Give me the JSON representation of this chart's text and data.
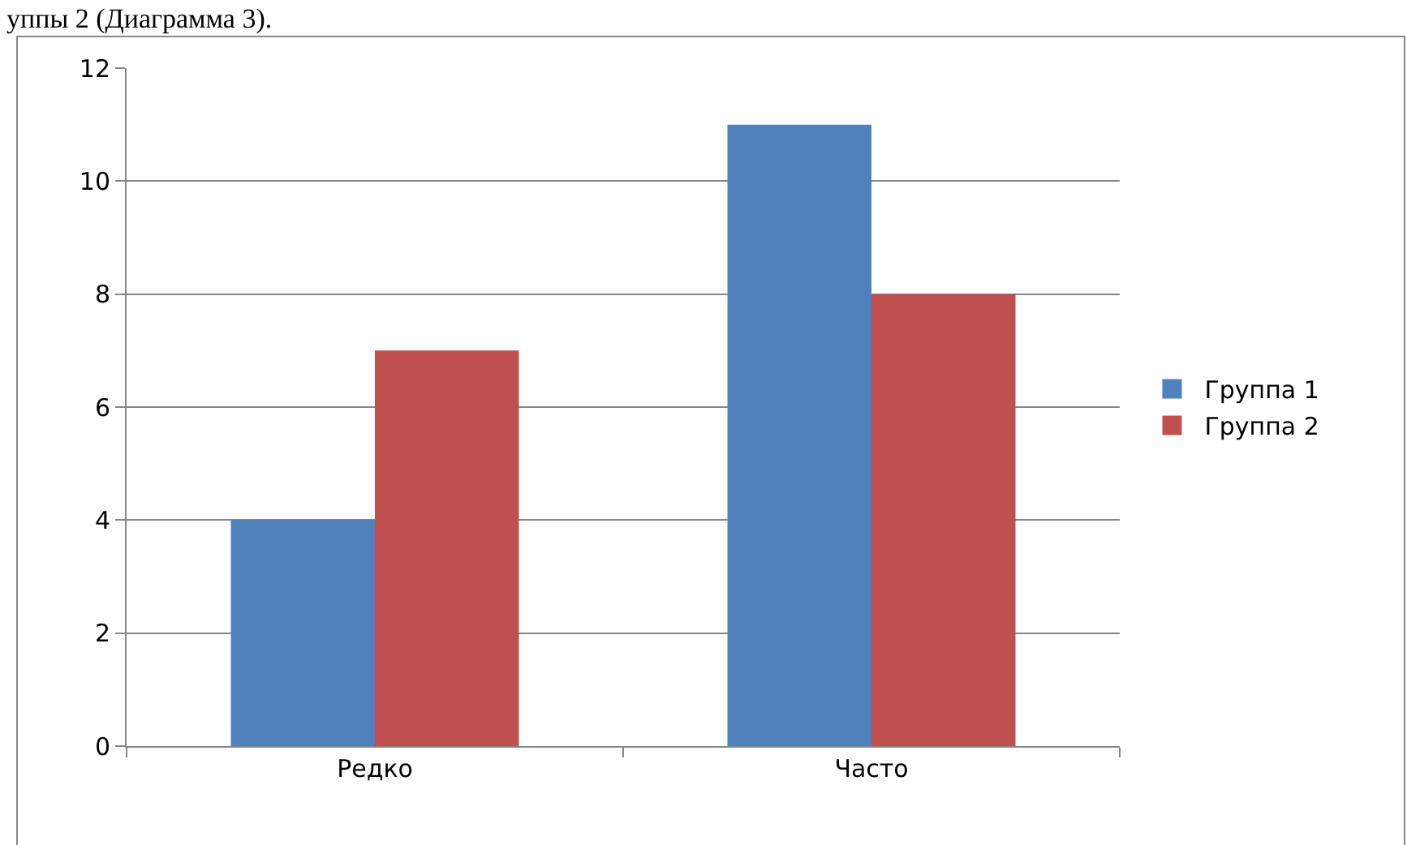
{
  "chart_data": {
    "type": "bar",
    "annotations": [
      "уппы 2 (Диаграмма 3)."
    ],
    "categories": [
      "Редко",
      "Часто"
    ],
    "series": [
      {
        "name": "Группа 1",
        "color": "#4f81bd",
        "values": [
          4,
          11
        ]
      },
      {
        "name": "Группа 2",
        "color": "#c0504d",
        "values": [
          7,
          8
        ]
      }
    ],
    "ylim": [
      0,
      12
    ],
    "yticks": [
      0,
      2,
      4,
      6,
      8,
      10,
      12
    ],
    "grid": "y",
    "legend": "right"
  }
}
